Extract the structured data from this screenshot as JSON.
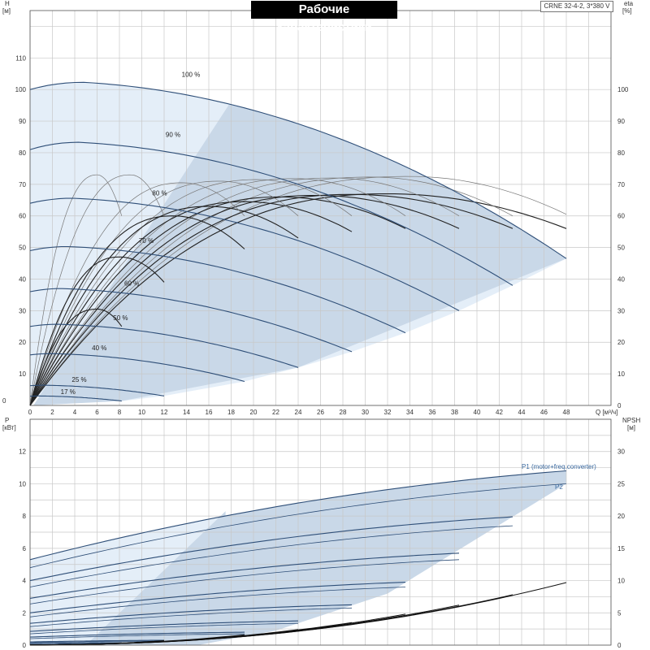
{
  "title": "Рабочие характеристики",
  "model": "CRNE 32-4-2, 3*380 V",
  "chart_data": [
    {
      "type": "line",
      "name": "head",
      "ylabel_left": [
        "H",
        "[м]"
      ],
      "ylabel_right": [
        "eta",
        "[%]"
      ],
      "xlabel": "Q [м³/ч]",
      "xlim": [
        0,
        52
      ],
      "ylim": [
        0,
        125
      ],
      "xticks": [
        "0",
        "2",
        "4",
        "6",
        "8",
        "10",
        "12",
        "14",
        "16",
        "18",
        "20",
        "22",
        "24",
        "26",
        "28",
        "30",
        "32",
        "34",
        "36",
        "38",
        "40",
        "42",
        "44",
        "46",
        "48"
      ],
      "yticks_left": [
        "10",
        "20",
        "30",
        "40",
        "50",
        "60",
        "70",
        "80",
        "90",
        "100",
        "110"
      ],
      "yticks_right": [
        "0",
        "10",
        "20",
        "30",
        "40",
        "50",
        "60",
        "70",
        "80",
        "90",
        "100"
      ],
      "grid": true,
      "speed_curves": [
        {
          "label": "100 %",
          "H0": 100,
          "Hpeak": 102.3,
          "Qpeak": 4.7,
          "Qmax": 48,
          "Hend": 46.5
        },
        {
          "label": "90 %",
          "H0": 81,
          "Hpeak": 83.3,
          "Qpeak": 4.3,
          "Qmax": 43.2,
          "Hend": 38
        },
        {
          "label": "80 %",
          "H0": 64,
          "Hpeak": 65.6,
          "Qpeak": 3.8,
          "Qmax": 38.4,
          "Hend": 30
        },
        {
          "label": "70 %",
          "H0": 49,
          "Hpeak": 50.3,
          "Qpeak": 3.3,
          "Qmax": 33.6,
          "Hend": 23
        },
        {
          "label": "60 %",
          "H0": 36,
          "Hpeak": 37,
          "Qpeak": 2.8,
          "Qmax": 28.8,
          "Hend": 17
        },
        {
          "label": "50 %",
          "H0": 25,
          "Hpeak": 25.7,
          "Qpeak": 2.4,
          "Qmax": 24,
          "Hend": 12
        },
        {
          "label": "40 %",
          "H0": 16,
          "Hpeak": 16.4,
          "Qpeak": 1.9,
          "Qmax": 19.2,
          "Hend": 7.6
        },
        {
          "label": "25 %",
          "H0": 6.25,
          "Hpeak": 6.4,
          "Qpeak": 1.2,
          "Qmax": 12,
          "Hend": 3
        },
        {
          "label": "17 %",
          "H0": 2.9,
          "Hpeak": 3,
          "Qpeak": 0.8,
          "Qmax": 8.2,
          "Hend": 1.4
        }
      ],
      "eta_curves": [
        {
          "Qmax": 48,
          "eta_peak": 72.5,
          "eta_end": 60.5,
          "Qpeak": 34,
          "dark": false
        },
        {
          "Qmax": 48,
          "eta_peak": 67,
          "eta_end": 56,
          "Qpeak": 32,
          "dark": true
        },
        {
          "Qmax": 43.2,
          "eta_peak": 72.3,
          "eta_end": 60,
          "Qpeak": 30.6,
          "dark": false
        },
        {
          "Qmax": 43.2,
          "eta_peak": 66.8,
          "eta_end": 56,
          "Qpeak": 28.8,
          "dark": true
        },
        {
          "Qmax": 38.4,
          "eta_peak": 72,
          "eta_end": 60,
          "Qpeak": 27.2,
          "dark": false
        },
        {
          "Qmax": 38.4,
          "eta_peak": 66.5,
          "eta_end": 56,
          "Qpeak": 25.6,
          "dark": true
        },
        {
          "Qmax": 33.6,
          "eta_peak": 71.8,
          "eta_end": 60,
          "Qpeak": 23.8,
          "dark": false
        },
        {
          "Qmax": 33.6,
          "eta_peak": 66,
          "eta_end": 56,
          "Qpeak": 22.4,
          "dark": true
        },
        {
          "Qmax": 28.8,
          "eta_peak": 71.5,
          "eta_end": 60,
          "Qpeak": 20.4,
          "dark": false
        },
        {
          "Qmax": 28.8,
          "eta_peak": 64.5,
          "eta_end": 55,
          "Qpeak": 19.2,
          "dark": true
        },
        {
          "Qmax": 24,
          "eta_peak": 71,
          "eta_end": 60,
          "Qpeak": 17,
          "dark": false
        },
        {
          "Qmax": 24,
          "eta_peak": 63,
          "eta_end": 53,
          "Qpeak": 16,
          "dark": true
        },
        {
          "Qmax": 19.2,
          "eta_peak": 70.5,
          "eta_end": 60,
          "Qpeak": 13.6,
          "dark": false
        },
        {
          "Qmax": 19.2,
          "eta_peak": 60,
          "eta_end": 49.5,
          "Qpeak": 12.8,
          "dark": true
        },
        {
          "Qmax": 12,
          "eta_peak": 73,
          "eta_end": 60,
          "Qpeak": 9,
          "dark": false
        },
        {
          "Qmax": 12,
          "eta_peak": 47,
          "eta_end": 39,
          "Qpeak": 8,
          "dark": true
        },
        {
          "Qmax": 8.2,
          "eta_peak": 73,
          "eta_end": 60,
          "Qpeak": 6,
          "dark": false
        },
        {
          "Qmax": 8.2,
          "eta_peak": 30.5,
          "eta_end": 25,
          "Qpeak": 6,
          "dark": true
        }
      ]
    },
    {
      "type": "line",
      "name": "power",
      "ylabel_left": [
        "P",
        "[кВт]"
      ],
      "ylabel_right": [
        "NPSH",
        "[м]"
      ],
      "xlim": [
        0,
        52
      ],
      "ylim": [
        0,
        14
      ],
      "yticks_left": [
        "0",
        "2",
        "4",
        "6",
        "8",
        "10",
        "12"
      ],
      "yticks_right": [
        "0",
        "5",
        "10",
        "15",
        "20",
        "25",
        "30"
      ],
      "grid": true,
      "series_labels": [
        "P1 (motor+freq.converter)",
        "P2"
      ],
      "power_curves": [
        {
          "Qmax": 48,
          "P1_0": 5.3,
          "P1_end": 10.8,
          "P2_0": 4.8,
          "P2_end": 10.0
        },
        {
          "Qmax": 43.2,
          "P1_0": 4.0,
          "P1_end": 7.95,
          "P2_0": 3.6,
          "P2_end": 7.4
        },
        {
          "Qmax": 38.4,
          "P1_0": 2.9,
          "P1_end": 5.7,
          "P2_0": 2.55,
          "P2_end": 5.3
        },
        {
          "Qmax": 33.6,
          "P1_0": 2.0,
          "P1_end": 3.9,
          "P2_0": 1.75,
          "P2_end": 3.6
        },
        {
          "Qmax": 28.8,
          "P1_0": 1.35,
          "P1_end": 2.5,
          "P2_0": 1.15,
          "P2_end": 2.3
        },
        {
          "Qmax": 24,
          "P1_0": 0.85,
          "P1_end": 1.5,
          "P2_0": 0.7,
          "P2_end": 1.35
        },
        {
          "Qmax": 19.2,
          "P1_0": 0.5,
          "P1_end": 0.8,
          "P2_0": 0.4,
          "P2_end": 0.7
        },
        {
          "Qmax": 12,
          "P1_0": 0.2,
          "P1_end": 0.3,
          "P2_0": 0.15,
          "P2_end": 0.25
        },
        {
          "Qmax": 8.2,
          "P1_0": 0.1,
          "P1_end": 0.15,
          "P2_0": 0.08,
          "P2_end": 0.12
        }
      ],
      "npsh_curves": [
        {
          "Qmax": 48,
          "npsh_end": 9.7
        },
        {
          "Qmax": 43.2,
          "npsh_end": 7.8
        },
        {
          "Qmax": 38.4,
          "npsh_end": 6.2
        },
        {
          "Qmax": 33.6,
          "npsh_end": 4.8
        },
        {
          "Qmax": 28.8,
          "npsh_end": 3.5
        },
        {
          "Qmax": 24,
          "npsh_end": 2.4
        },
        {
          "Qmax": 19.2,
          "npsh_end": 1.6
        },
        {
          "Qmax": 12,
          "npsh_end": 0.7
        }
      ]
    }
  ]
}
